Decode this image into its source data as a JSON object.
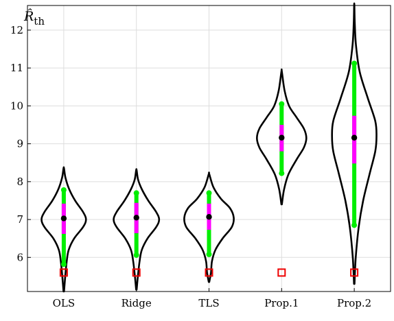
{
  "chart_data": {
    "type": "violin",
    "y_axis_label": "R̂th",
    "categories": [
      "OLS",
      "Ridge",
      "TLS",
      "Prop.1",
      "Prop.2"
    ],
    "ylim": [
      5.1,
      12.65
    ],
    "yticks": [
      6,
      7,
      8,
      9,
      10,
      11,
      12
    ],
    "grid": true,
    "series": [
      {
        "category": "OLS",
        "median": 7.03,
        "iqr": [
          6.62,
          7.42
        ],
        "whisker": [
          5.82,
          7.78
        ],
        "reference": 5.6,
        "range": [
          5.1,
          8.35
        ],
        "density": [
          [
            5.1,
            0.01
          ],
          [
            5.5,
            0.06
          ],
          [
            5.9,
            0.12
          ],
          [
            6.2,
            0.2
          ],
          [
            6.5,
            0.42
          ],
          [
            6.8,
            0.78
          ],
          [
            7.0,
            0.9
          ],
          [
            7.2,
            0.78
          ],
          [
            7.5,
            0.46
          ],
          [
            7.8,
            0.22
          ],
          [
            8.1,
            0.07
          ],
          [
            8.35,
            0.01
          ]
        ]
      },
      {
        "category": "Ridge",
        "median": 7.05,
        "iqr": [
          6.64,
          7.44
        ],
        "whisker": [
          6.06,
          7.7
        ],
        "reference": 5.6,
        "range": [
          5.15,
          8.3
        ],
        "density": [
          [
            5.15,
            0.01
          ],
          [
            5.5,
            0.06
          ],
          [
            5.9,
            0.13
          ],
          [
            6.2,
            0.22
          ],
          [
            6.5,
            0.45
          ],
          [
            6.8,
            0.8
          ],
          [
            7.0,
            0.92
          ],
          [
            7.2,
            0.8
          ],
          [
            7.5,
            0.48
          ],
          [
            7.8,
            0.22
          ],
          [
            8.05,
            0.07
          ],
          [
            8.3,
            0.01
          ]
        ]
      },
      {
        "category": "TLS",
        "median": 7.07,
        "iqr": [
          6.73,
          7.42
        ],
        "whisker": [
          6.08,
          7.7
        ],
        "reference": 5.6,
        "range": [
          5.35,
          8.2
        ],
        "density": [
          [
            5.35,
            0.01
          ],
          [
            5.6,
            0.08
          ],
          [
            5.9,
            0.12
          ],
          [
            6.2,
            0.26
          ],
          [
            6.5,
            0.55
          ],
          [
            6.8,
            0.92
          ],
          [
            7.05,
            1.0
          ],
          [
            7.3,
            0.85
          ],
          [
            7.55,
            0.48
          ],
          [
            7.85,
            0.18
          ],
          [
            8.2,
            0.01
          ]
        ]
      },
      {
        "category": "Prop.1",
        "median": 9.16,
        "iqr": [
          8.8,
          9.5
        ],
        "whisker": [
          8.22,
          10.05
        ],
        "reference": 5.6,
        "range": [
          7.4,
          10.9
        ],
        "density": [
          [
            7.4,
            0.01
          ],
          [
            7.8,
            0.1
          ],
          [
            8.2,
            0.28
          ],
          [
            8.6,
            0.62
          ],
          [
            8.9,
            0.9
          ],
          [
            9.15,
            1.0
          ],
          [
            9.4,
            0.9
          ],
          [
            9.7,
            0.6
          ],
          [
            10.0,
            0.3
          ],
          [
            10.4,
            0.12
          ],
          [
            10.9,
            0.01
          ]
        ]
      },
      {
        "category": "Prop.2",
        "median": 9.16,
        "iqr": [
          8.48,
          9.74
        ],
        "whisker": [
          6.85,
          11.12
        ],
        "reference": 5.6,
        "range": [
          5.3,
          12.65
        ],
        "density": [
          [
            5.3,
            0.01
          ],
          [
            6.0,
            0.06
          ],
          [
            6.8,
            0.18
          ],
          [
            7.5,
            0.36
          ],
          [
            8.2,
            0.62
          ],
          [
            8.8,
            0.85
          ],
          [
            9.2,
            0.9
          ],
          [
            9.6,
            0.85
          ],
          [
            10.2,
            0.55
          ],
          [
            10.9,
            0.22
          ],
          [
            11.6,
            0.07
          ],
          [
            12.2,
            0.02
          ],
          [
            12.65,
            0.005
          ]
        ]
      }
    ],
    "colors": {
      "violin_outline": "#000000",
      "whisker": "#00ee00",
      "iqr": "#ff00ff",
      "median": "#000000",
      "reference_marker": "#ee0000",
      "grid": "#dddddd"
    }
  }
}
